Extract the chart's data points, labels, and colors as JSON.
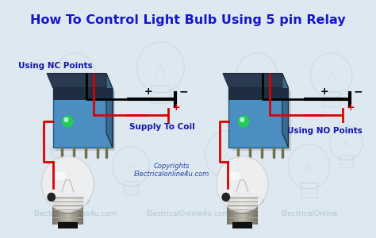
{
  "title": "How To Control Light Bulb Using 5 pin Relay",
  "title_color": "#1515cc",
  "title_fontsize": 11.5,
  "bg_color": "#dde8f0",
  "watermark_color": "#9ab8cc",
  "label_nc": "Using NC Points",
  "label_no": "Using NO Points",
  "label_supply": "Supply To Coil",
  "label_copyright1": "Copyrights",
  "label_copyright2": "Electricalonline4u.com",
  "label_color_blue": "#1515aa",
  "wm_texts": [
    "ElectricalOnline4u.com",
    "ElectricalOnline4u.com",
    "ElectricalOnline"
  ],
  "relay_body_color": "#4a8ec2",
  "relay_body_dark": "#2a5a80",
  "relay_top_color": "#2a3a50",
  "relay_side_color": "#3a6a90",
  "relay_led_color": "#22cc55",
  "bulb_globe_color": "#e8e8e8",
  "bulb_base_color": "#b0a890",
  "bulb_base_dark": "#787060",
  "wire_red": "#dd0000",
  "wire_black": "#111111",
  "bat_black": "#111111",
  "plus_color": "#111111",
  "minus_color": "#111111"
}
